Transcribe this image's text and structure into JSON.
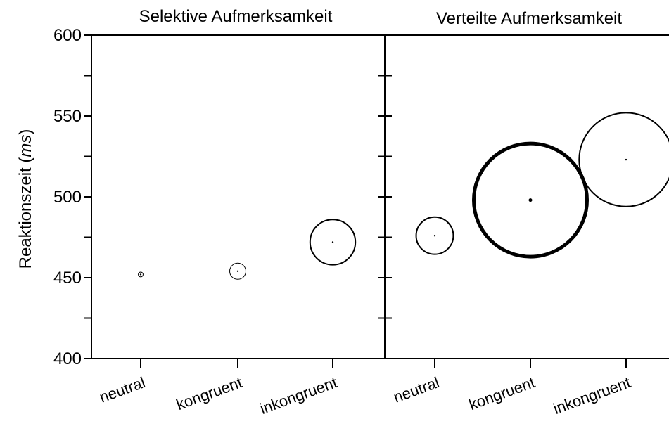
{
  "chart_data": [
    {
      "type": "scatter",
      "title": "Selektive Aufmerksamkeit",
      "ylabel": "Reaktionszeit (ms)",
      "ylabel_main": "Reaktionszeit (",
      "ylabel_unit": "ms",
      "ylabel_close": ")",
      "ylim": [
        400,
        600
      ],
      "yticks": [
        "400",
        "450",
        "500",
        "550",
        "600"
      ],
      "categories": [
        "neutral",
        "kongruent",
        "inkongruent"
      ],
      "values": [
        452,
        454,
        472
      ],
      "bubble_size_ms": [
        1.5,
        5,
        14
      ],
      "bubble_stroke": [
        "thin",
        "thin",
        "medium"
      ]
    },
    {
      "type": "scatter",
      "title": "Verteilte Aufmerksamkeit",
      "ylim": [
        400,
        600
      ],
      "categories": [
        "neutral",
        "kongruent",
        "inkongruent"
      ],
      "values": [
        476,
        498,
        523
      ],
      "bubble_size_ms": [
        11.5,
        35,
        29
      ],
      "bubble_stroke": [
        "medium",
        "thick",
        "medium"
      ]
    }
  ]
}
